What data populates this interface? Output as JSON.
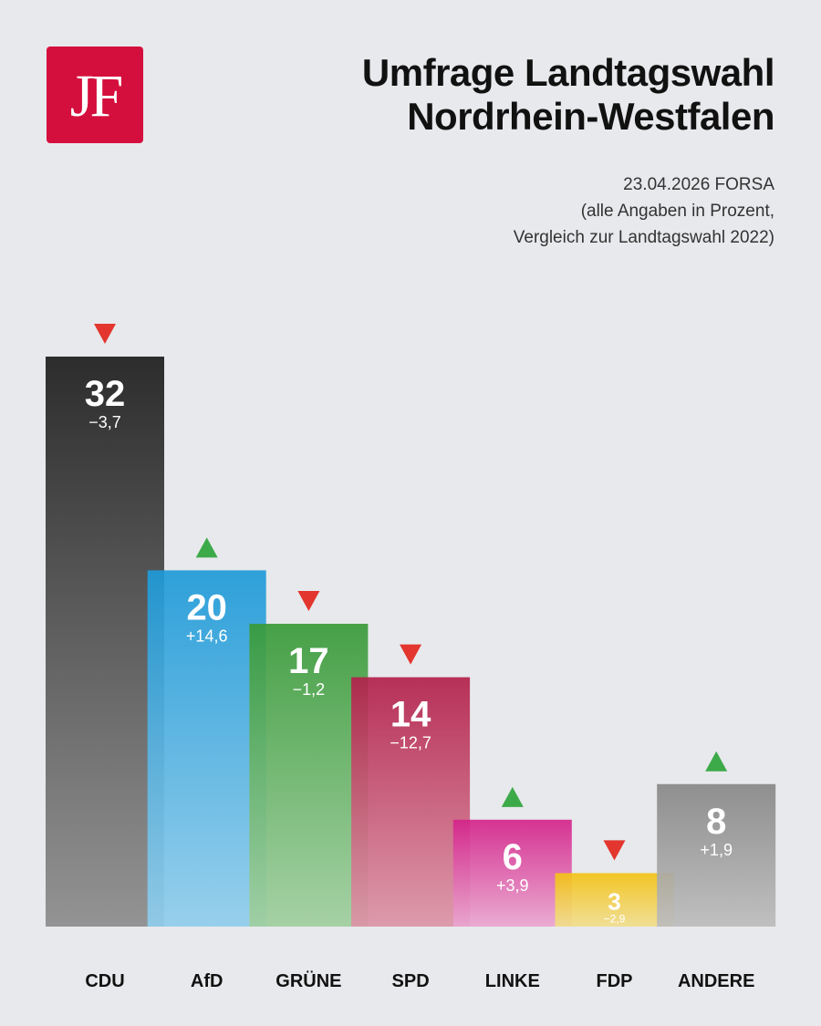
{
  "logo": {
    "text": "JF",
    "color": "#d50f3d"
  },
  "header": {
    "title_line1": "Umfrage Landtagswahl",
    "title_line2": "Nordrhein-Westfalen",
    "subtitle_line1": "23.04.2026 FORSA",
    "subtitle_line2": "(alle Angaben in Prozent,",
    "subtitle_line3": "Vergleich zur Landtagswahl 2022)"
  },
  "chart_data": {
    "type": "bar",
    "ylim": [
      0,
      32
    ],
    "categories": [
      "CDU",
      "AfD",
      "GRÜNE",
      "SPD",
      "LINKE",
      "FDP",
      "ANDERE"
    ],
    "values": [
      32,
      20,
      17,
      14,
      6,
      3,
      8
    ],
    "change_labels": [
      "−3,7",
      "+14,6",
      "−1,2",
      "−12,7",
      "+3,9",
      "−2,9",
      "+1,9"
    ],
    "trend": [
      "down",
      "up",
      "down",
      "down",
      "up",
      "down",
      "up"
    ],
    "colors": [
      [
        "#1c1c1c",
        "#8c8c8d"
      ],
      [
        "#1e9ad8",
        "#90cdec"
      ],
      [
        "#389a38",
        "#a0cf9f"
      ],
      [
        "#b3204a",
        "#dc94a6"
      ],
      [
        "#d4238a",
        "#eaa6d0"
      ],
      [
        "#f3c214",
        "#f1de8e"
      ],
      [
        "#878787",
        "#bcbcbc"
      ]
    ],
    "trend_colors": {
      "up": "#3daa4a",
      "down": "#e2362e"
    }
  }
}
